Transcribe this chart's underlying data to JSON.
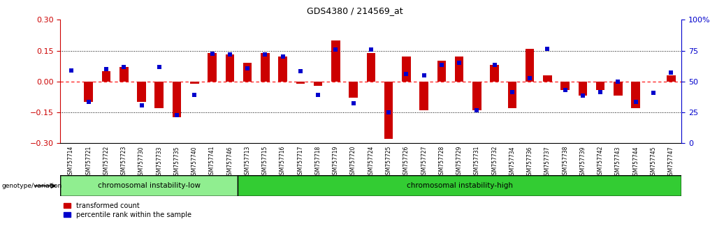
{
  "title": "GDS4380 / 214569_at",
  "samples": [
    "GSM757714",
    "GSM757721",
    "GSM757722",
    "GSM757723",
    "GSM757730",
    "GSM757733",
    "GSM757735",
    "GSM757740",
    "GSM757741",
    "GSM757746",
    "GSM757713",
    "GSM757715",
    "GSM757716",
    "GSM757717",
    "GSM757718",
    "GSM757719",
    "GSM757720",
    "GSM757724",
    "GSM757725",
    "GSM757726",
    "GSM757727",
    "GSM757728",
    "GSM757729",
    "GSM757731",
    "GSM757732",
    "GSM757734",
    "GSM757736",
    "GSM757737",
    "GSM757738",
    "GSM757739",
    "GSM757742",
    "GSM757743",
    "GSM757744",
    "GSM757745",
    "GSM757747"
  ],
  "red_values": [
    0.0,
    -0.1,
    0.05,
    0.07,
    -0.1,
    -0.13,
    -0.175,
    -0.01,
    0.14,
    0.13,
    0.09,
    0.14,
    0.12,
    -0.01,
    -0.02,
    0.2,
    -0.08,
    0.14,
    -0.28,
    0.12,
    -0.14,
    0.1,
    0.12,
    -0.14,
    0.08,
    -0.13,
    0.16,
    0.03,
    -0.04,
    -0.07,
    -0.04,
    -0.07,
    -0.13,
    0.0,
    0.03
  ],
  "blue_values": [
    0.055,
    -0.1,
    0.06,
    0.07,
    -0.115,
    0.07,
    -0.165,
    -0.065,
    0.135,
    0.13,
    0.065,
    0.13,
    0.12,
    0.05,
    -0.065,
    0.155,
    -0.105,
    0.155,
    -0.15,
    0.035,
    0.03,
    0.08,
    0.09,
    -0.14,
    0.08,
    -0.05,
    0.015,
    0.16,
    -0.04,
    -0.07,
    -0.05,
    0.0,
    -0.1,
    -0.055,
    0.045
  ],
  "group1_label": "chromosomal instability-low",
  "group2_label": "chromosomal instability-high",
  "group1_count": 10,
  "group2_count": 25,
  "genotype_label": "genotype/variation",
  "ylim_left": [
    -0.3,
    0.3
  ],
  "ylim_right": [
    0,
    100
  ],
  "yticks_left": [
    -0.3,
    -0.15,
    0.0,
    0.15,
    0.3
  ],
  "yticks_right": [
    0,
    25,
    50,
    75,
    100
  ],
  "hline_values": [
    -0.15,
    0.0,
    0.15
  ],
  "red_color": "#cc0000",
  "blue_color": "#0000cc",
  "group1_color": "#90ee90",
  "group2_color": "#33cc33",
  "bar_width": 0.5,
  "blue_marker_size": 4
}
